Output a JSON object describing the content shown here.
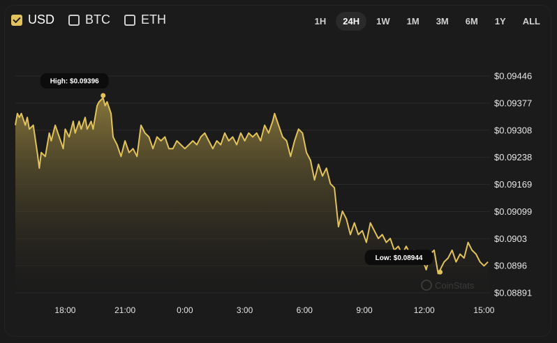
{
  "currencies": [
    {
      "label": "USD",
      "checked": true
    },
    {
      "label": "BTC",
      "checked": false
    },
    {
      "label": "ETH",
      "checked": false
    }
  ],
  "ranges": [
    {
      "label": "1H",
      "active": false
    },
    {
      "label": "24H",
      "active": true
    },
    {
      "label": "1W",
      "active": false
    },
    {
      "label": "1M",
      "active": false
    },
    {
      "label": "3M",
      "active": false
    },
    {
      "label": "6M",
      "active": false
    },
    {
      "label": "1Y",
      "active": false
    },
    {
      "label": "ALL",
      "active": false
    }
  ],
  "watermark": "CoinStats",
  "colors": {
    "line": "#e2c25a",
    "fill_top": "#8c7a3c",
    "fill_bottom": "#1b1b1b",
    "grid": "#2a2a2a"
  },
  "chart_data": {
    "type": "area",
    "y_ticks": [
      "$0.09446",
      "$0.09377",
      "$0.09308",
      "$0.09238",
      "$0.09169",
      "$0.09099",
      "$0.0903",
      "$0.0896",
      "$0.08891"
    ],
    "x_ticks": [
      "18:00",
      "21:00",
      "0:00",
      "3:00",
      "6:00",
      "9:00",
      "12:00",
      "15:00"
    ],
    "ylim": [
      0.08891,
      0.09446
    ],
    "xlim": [
      15.5,
      39.3
    ],
    "grid": true,
    "high": {
      "label": "High: $0.09396",
      "x": 19.9,
      "y": 0.09396
    },
    "low": {
      "label": "Low: $0.08944",
      "x": 36.8,
      "y": 0.08944
    },
    "x": [
      15.5,
      15.6,
      15.7,
      15.8,
      16.0,
      16.1,
      16.2,
      16.4,
      16.6,
      16.7,
      16.8,
      17.0,
      17.2,
      17.3,
      17.5,
      17.7,
      17.9,
      18.0,
      18.2,
      18.4,
      18.5,
      18.7,
      18.8,
      19.0,
      19.1,
      19.3,
      19.4,
      19.6,
      19.7,
      19.9,
      20.0,
      20.1,
      20.3,
      20.4,
      20.6,
      20.8,
      21.0,
      21.2,
      21.4,
      21.6,
      21.8,
      22.0,
      22.2,
      22.4,
      22.6,
      22.8,
      23.0,
      23.2,
      23.4,
      23.6,
      23.8,
      24.0,
      24.2,
      24.4,
      24.6,
      24.8,
      25.0,
      25.2,
      25.4,
      25.6,
      25.8,
      26.0,
      26.2,
      26.4,
      26.6,
      26.8,
      27.0,
      27.2,
      27.4,
      27.6,
      27.8,
      28.0,
      28.2,
      28.4,
      28.5,
      28.7,
      28.9,
      29.1,
      29.3,
      29.5,
      29.7,
      29.9,
      30.1,
      30.3,
      30.5,
      30.7,
      30.9,
      31.1,
      31.3,
      31.5,
      31.7,
      31.9,
      32.1,
      32.3,
      32.5,
      32.7,
      32.9,
      33.1,
      33.3,
      33.5,
      33.7,
      33.9,
      34.1,
      34.3,
      34.5,
      34.7,
      34.9,
      35.1,
      35.3,
      35.5,
      35.7,
      35.9,
      36.1,
      36.3,
      36.5,
      36.7,
      36.8,
      37.0,
      37.2,
      37.4,
      37.6,
      37.8,
      38.0,
      38.2,
      38.4,
      38.6,
      38.8,
      39.0,
      39.2
    ],
    "y": [
      0.0932,
      0.0935,
      0.0934,
      0.0935,
      0.0932,
      0.0934,
      0.0931,
      0.0932,
      0.0925,
      0.0921,
      0.0925,
      0.0924,
      0.093,
      0.0928,
      0.0932,
      0.0929,
      0.0926,
      0.0931,
      0.0929,
      0.0933,
      0.093,
      0.0933,
      0.0931,
      0.0934,
      0.0931,
      0.0933,
      0.0931,
      0.0937,
      0.0938,
      0.0939,
      0.0937,
      0.0938,
      0.0935,
      0.0929,
      0.0927,
      0.0924,
      0.0928,
      0.0925,
      0.0926,
      0.0924,
      0.0932,
      0.093,
      0.0929,
      0.0926,
      0.0929,
      0.0928,
      0.0929,
      0.0926,
      0.0926,
      0.0928,
      0.0927,
      0.0926,
      0.0927,
      0.0928,
      0.0927,
      0.0929,
      0.093,
      0.0928,
      0.0926,
      0.0928,
      0.0927,
      0.093,
      0.0928,
      0.0929,
      0.0927,
      0.093,
      0.0928,
      0.093,
      0.0929,
      0.093,
      0.0928,
      0.0932,
      0.093,
      0.0933,
      0.0935,
      0.0932,
      0.0929,
      0.0928,
      0.0924,
      0.0928,
      0.0931,
      0.093,
      0.0925,
      0.0923,
      0.0918,
      0.0922,
      0.0919,
      0.0921,
      0.0917,
      0.0916,
      0.0906,
      0.091,
      0.0908,
      0.0904,
      0.0907,
      0.0904,
      0.0905,
      0.0902,
      0.0907,
      0.0905,
      0.0903,
      0.0904,
      0.0902,
      0.0903,
      0.09,
      0.0901,
      0.0899,
      0.0901,
      0.0899,
      0.09,
      0.0897,
      0.0898,
      0.0895,
      0.0899,
      0.09,
      0.0894,
      0.0895,
      0.0897,
      0.0898,
      0.09,
      0.0897,
      0.0899,
      0.0898,
      0.0902,
      0.09,
      0.0899,
      0.0897,
      0.0896,
      0.0897
    ]
  }
}
